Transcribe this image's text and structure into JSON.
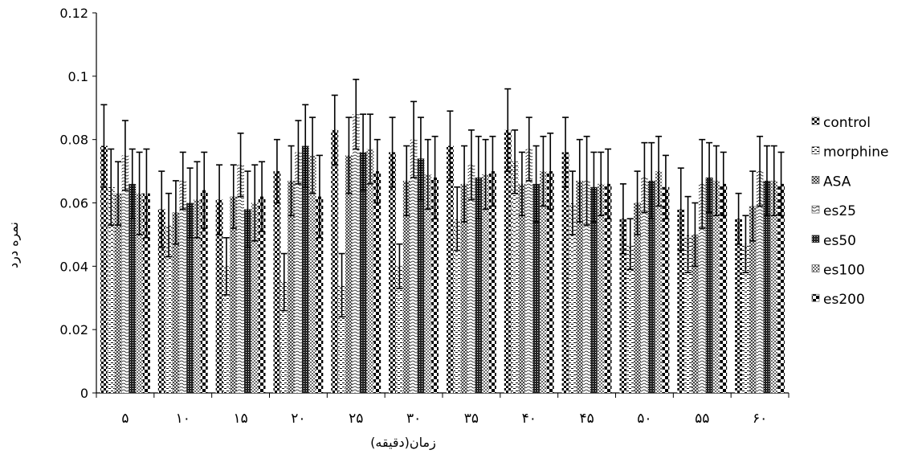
{
  "chart_data": {
    "type": "bar",
    "title": "",
    "xlabel": "زمان(دقیقه)",
    "ylabel": "نمره درد",
    "ylim": [
      0,
      0.12
    ],
    "yticks": [
      "0",
      "0.02",
      "0.04",
      "0.06",
      "0.08",
      "0.1",
      "0.12"
    ],
    "grid": false,
    "legend_position": "right",
    "categories": [
      "۵",
      "۱۰",
      "۱۵",
      "۲۰",
      "۲۵",
      "۳۰",
      "۳۵",
      "۴۰",
      "۴۵",
      "۵۰",
      "۵۵",
      "۶۰"
    ],
    "series": [
      {
        "name": "control",
        "pattern": "checker",
        "values": [
          0.078,
          0.058,
          0.061,
          0.07,
          0.083,
          0.076,
          0.078,
          0.083,
          0.076,
          0.055,
          0.058,
          0.055
        ],
        "errors": [
          0.013,
          0.012,
          0.011,
          0.01,
          0.011,
          0.011,
          0.011,
          0.013,
          0.011,
          0.011,
          0.013,
          0.008
        ]
      },
      {
        "name": "morphine",
        "pattern": "dashed",
        "values": [
          0.065,
          0.053,
          0.04,
          0.035,
          0.034,
          0.04,
          0.055,
          0.073,
          0.06,
          0.047,
          0.05,
          0.047
        ],
        "errors": [
          0.012,
          0.01,
          0.009,
          0.009,
          0.01,
          0.007,
          0.01,
          0.01,
          0.01,
          0.008,
          0.012,
          0.009
        ]
      },
      {
        "name": "ASA",
        "pattern": "crosshatch",
        "values": [
          0.063,
          0.057,
          0.062,
          0.067,
          0.075,
          0.067,
          0.066,
          0.066,
          0.067,
          0.06,
          0.05,
          0.059
        ],
        "errors": [
          0.01,
          0.01,
          0.01,
          0.011,
          0.012,
          0.011,
          0.012,
          0.01,
          0.013,
          0.01,
          0.01,
          0.011
        ]
      },
      {
        "name": "es25",
        "pattern": "wave",
        "values": [
          0.075,
          0.067,
          0.072,
          0.076,
          0.088,
          0.08,
          0.072,
          0.077,
          0.067,
          0.068,
          0.066,
          0.07
        ],
        "errors": [
          0.011,
          0.009,
          0.01,
          0.01,
          0.011,
          0.012,
          0.011,
          0.01,
          0.014,
          0.011,
          0.014,
          0.011
        ]
      },
      {
        "name": "es50",
        "pattern": "dense",
        "values": [
          0.066,
          0.06,
          0.058,
          0.078,
          0.076,
          0.074,
          0.068,
          0.066,
          0.065,
          0.067,
          0.068,
          0.067
        ],
        "errors": [
          0.011,
          0.011,
          0.012,
          0.013,
          0.012,
          0.013,
          0.013,
          0.012,
          0.011,
          0.012,
          0.011,
          0.011
        ]
      },
      {
        "name": "es100",
        "pattern": "dots",
        "values": [
          0.063,
          0.061,
          0.06,
          0.075,
          0.077,
          0.069,
          0.069,
          0.07,
          0.066,
          0.07,
          0.067,
          0.067
        ],
        "errors": [
          0.013,
          0.012,
          0.012,
          0.012,
          0.011,
          0.011,
          0.011,
          0.011,
          0.01,
          0.011,
          0.011,
          0.011
        ]
      },
      {
        "name": "es200",
        "pattern": "checker-large",
        "values": [
          0.063,
          0.064,
          0.062,
          0.062,
          0.07,
          0.068,
          0.07,
          0.07,
          0.066,
          0.065,
          0.066,
          0.066
        ],
        "errors": [
          0.014,
          0.012,
          0.011,
          0.013,
          0.01,
          0.013,
          0.011,
          0.012,
          0.011,
          0.01,
          0.01,
          0.01
        ]
      }
    ]
  }
}
